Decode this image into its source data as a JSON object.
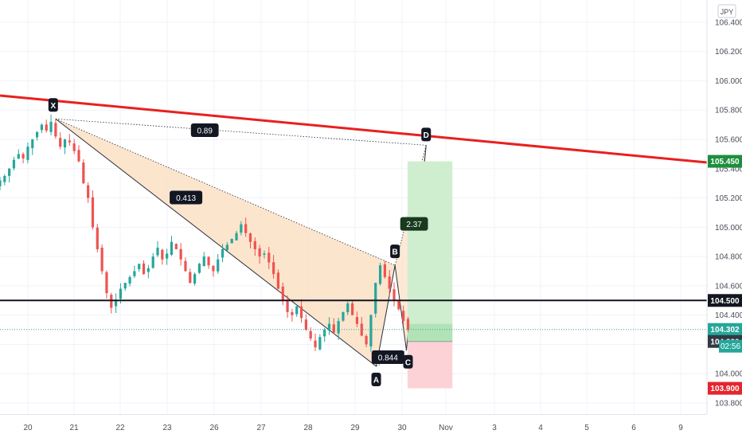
{
  "currency_label": "JPY",
  "timer": "02:56",
  "colors": {
    "up": "#26a69a",
    "down": "#ef5350",
    "trendline": "#e8201f",
    "level": "#131722",
    "pattern_fill": "#fbe1c4",
    "profit_fill": "#cfeecf",
    "loss_fill": "#fcd2d6",
    "label_bg": "#131722",
    "ratio_bg": "#1a3a1f",
    "grid": "#f0f3fa",
    "axis_text": "#4a4e58"
  },
  "chart_data": {
    "type": "candlestick",
    "title": "",
    "x_ticks": [
      "20",
      "21",
      "22",
      "23",
      "26",
      "27",
      "28",
      "29",
      "30",
      "Nov",
      "3",
      "4",
      "5",
      "6",
      "9"
    ],
    "y_ticks": [
      103.8,
      104.0,
      104.2,
      104.4,
      104.6,
      104.8,
      105.0,
      105.2,
      105.4,
      105.6,
      105.8,
      106.0,
      106.2,
      106.4
    ],
    "ylim": [
      103.7,
      106.5
    ],
    "price_labels": [
      {
        "value": "105.450",
        "price": 105.45,
        "color": "#1e8e3e"
      },
      {
        "value": "104.500",
        "price": 104.5,
        "color": "#131722"
      },
      {
        "value": "104.302",
        "price": 104.302,
        "color": "#26a69a"
      },
      {
        "value": "104.220",
        "price": 104.22,
        "color": "#333842"
      },
      {
        "value": "103.900",
        "price": 103.9,
        "color": "#e5252d"
      }
    ],
    "horizontal_level": 104.5,
    "current_price": 104.302,
    "trendline": {
      "from": {
        "day": "19.6",
        "price": 105.9
      },
      "to": {
        "day": "32.6",
        "price": 105.45
      }
    },
    "pattern": {
      "points": [
        {
          "name": "X",
          "day": 20.6,
          "price": 105.74
        },
        {
          "name": "A",
          "day": 29.45,
          "price": 104.05
        },
        {
          "name": "B",
          "day": 29.85,
          "price": 104.74
        },
        {
          "name": "C",
          "day": 30.2,
          "price": 104.16
        },
        {
          "name": "D",
          "day": 31.1,
          "price": 105.56
        }
      ],
      "ratios": [
        {
          "value": "0.89",
          "day": 25.4,
          "price": 105.66
        },
        {
          "value": "0.413",
          "day": 24.2,
          "price": 105.2
        },
        {
          "value": "2.37",
          "day": 30.55,
          "price": 105.02
        },
        {
          "value": "0.844",
          "day": 29.7,
          "price": 104.11
        }
      ]
    },
    "position": {
      "entry": 104.22,
      "target": 105.45,
      "stop": 103.9,
      "day_start": 30.25,
      "day_end": 32.3
    },
    "ohlc_close_series": [
      105.32,
      105.35,
      105.4,
      105.46,
      105.5,
      105.47,
      105.55,
      105.6,
      105.65,
      105.7,
      105.66,
      105.72,
      105.62,
      105.55,
      105.6,
      105.58,
      105.52,
      105.45,
      105.3,
      105.2,
      105.0,
      104.85,
      104.7,
      104.55,
      104.45,
      104.5,
      104.58,
      104.62,
      104.66,
      104.7,
      104.75,
      104.68,
      104.72,
      104.8,
      104.86,
      104.78,
      104.82,
      104.9,
      104.85,
      104.78,
      104.7,
      104.62,
      104.68,
      104.75,
      104.8,
      104.74,
      104.7,
      104.78,
      104.85,
      104.88,
      104.92,
      104.96,
      105.02,
      104.96,
      104.9,
      104.85,
      104.8,
      104.82,
      104.76,
      104.68,
      104.58,
      104.5,
      104.42,
      104.4,
      104.46,
      104.38,
      104.3,
      104.24,
      104.18,
      104.25,
      104.3,
      104.34,
      104.28,
      104.36,
      104.42,
      104.48,
      104.4,
      104.34,
      104.26,
      104.2,
      104.4,
      104.62,
      104.74,
      104.66,
      104.58,
      104.5,
      104.44,
      104.36,
      104.3
    ]
  }
}
